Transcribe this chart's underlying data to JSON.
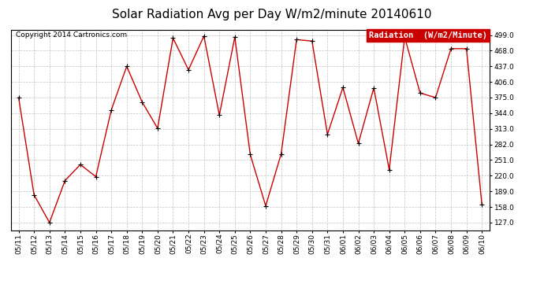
{
  "title": "Solar Radiation Avg per Day W/m2/minute 20140610",
  "copyright": "Copyright 2014 Cartronics.com",
  "legend_label": "Radiation  (W/m2/Minute)",
  "dates": [
    "05/11",
    "05/12",
    "05/13",
    "05/14",
    "05/15",
    "05/16",
    "05/17",
    "05/18",
    "05/19",
    "05/20",
    "05/21",
    "05/22",
    "05/23",
    "05/24",
    "05/25",
    "05/26",
    "05/27",
    "05/28",
    "05/29",
    "05/30",
    "05/31",
    "06/01",
    "06/02",
    "06/03",
    "06/04",
    "06/05",
    "06/06",
    "06/07",
    "06/08",
    "06/09",
    "06/10"
  ],
  "values": [
    375.0,
    182.0,
    127.0,
    210.0,
    242.0,
    218.0,
    350.0,
    437.0,
    366.0,
    314.0,
    493.0,
    430.0,
    497.0,
    340.0,
    495.0,
    262.0,
    160.0,
    263.0,
    490.0,
    487.0,
    302.0,
    395.0,
    284.0,
    394.0,
    232.0,
    495.0,
    384.0,
    375.0,
    472.0,
    472.0,
    163.0
  ],
  "line_color": "#cc0000",
  "marker_color": "#000000",
  "background_color": "#ffffff",
  "plot_bg_color": "#ffffff",
  "grid_color": "#bbbbbb",
  "legend_bg": "#cc0000",
  "legend_fg": "#ffffff",
  "ylim_min": 112.0,
  "ylim_max": 510.0,
  "yticks": [
    127.0,
    158.0,
    189.0,
    220.0,
    251.0,
    282.0,
    313.0,
    344.0,
    375.0,
    406.0,
    437.0,
    468.0,
    499.0
  ],
  "title_fontsize": 11,
  "copyright_fontsize": 6.5,
  "legend_fontsize": 7.5,
  "tick_fontsize": 6.5
}
